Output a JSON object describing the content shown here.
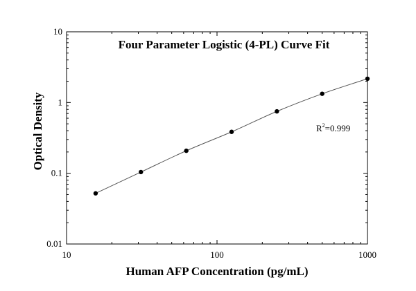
{
  "chart_data": {
    "type": "scatter",
    "title": "Four Parameter Logistic (4-PL) Curve Fit",
    "xlabel": "Human AFP Concentration (pg/mL)",
    "ylabel": "Optical Density",
    "x_scale": "log",
    "y_scale": "log",
    "xlim": [
      10,
      1000
    ],
    "ylim": [
      0.01,
      10
    ],
    "x_ticks": [
      {
        "value": 10,
        "label": "10"
      },
      {
        "value": 100,
        "label": "100"
      },
      {
        "value": 1000,
        "label": "1000"
      }
    ],
    "y_ticks": [
      {
        "value": 0.01,
        "label": "0.01"
      },
      {
        "value": 0.1,
        "label": "0.1"
      },
      {
        "value": 1,
        "label": "1"
      },
      {
        "value": 10,
        "label": "10"
      }
    ],
    "grid": false,
    "series": [
      {
        "x": [
          15.6,
          31.2,
          62.5,
          125,
          250,
          500,
          1000
        ],
        "y": [
          0.052,
          0.104,
          0.208,
          0.385,
          0.75,
          1.33,
          2.17
        ]
      }
    ],
    "annotation": {
      "base": "R",
      "sup": "2",
      "text": "=0.999"
    },
    "colors": {
      "points": "#000000",
      "curve": "#555555"
    }
  }
}
